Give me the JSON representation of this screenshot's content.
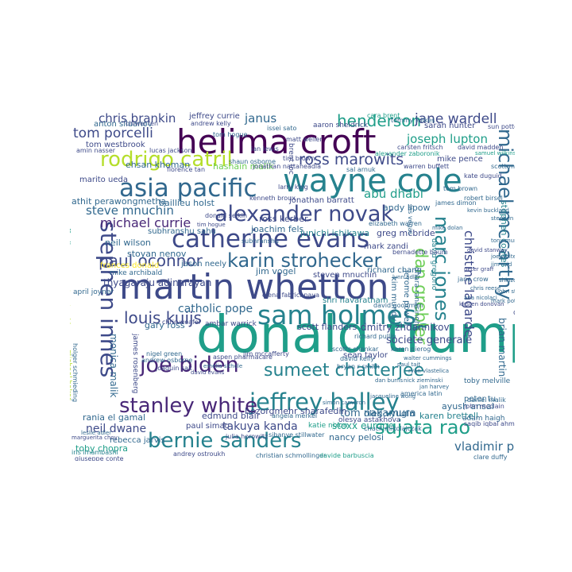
{
  "palette": {
    "c0": "#440154",
    "c1": "#482777",
    "c2": "#3e4a89",
    "c3": "#31688e",
    "c4": "#26828e",
    "c5": "#1f9e89",
    "c6": "#35b779",
    "c7": "#6ece58",
    "c8": "#b5de2b",
    "c9": "#fde725"
  },
  "words": {
    "donald_trump": "donald trump",
    "martin_whetton": "martin whetton",
    "helima_croft": "helima croft",
    "wayne_cole": "wayne cole",
    "sam_holmes": "sam holmes",
    "catherine_evans": "catherine evans",
    "asia_pacific": "asia pacific",
    "alexander_novak": "alexander novak",
    "jeffrey_halley": "jeffrey halley",
    "bernie_sanders": "bernie sanders",
    "stephen_innes": "stephen innes",
    "stanley_white": "stanley white",
    "joe_biden": "joe biden",
    "rodrigo_catril": "rodrigo catril",
    "karin_strohecker": "karin strohecker",
    "sujata_rao": "sujata rao",
    "sumeet_chatterjee": "sumeet chatterjee",
    "michael_mccarthy": "michael mccarthy",
    "marc_jones": "marc jones",
    "ross_marowits": "ross marowits",
    "paul_oconnor": "paul oconnor",
    "louis_kuijs": "louis kuijs",
    "henderson": "henderson",
    "dan_grebler": "dan grebler",
    "tom_porcelli": "tom porcelli",
    "jane_wardell": "jane wardell",
    "chris_brankin": "chris brankin",
    "joseph_lupton": "joseph lupton",
    "christine_lagarde": "christine lagarde",
    "steve_mnuchin": "steve mnuchin",
    "michael_currie": "michael currie",
    "abu_dhabi": "abu dhabi",
    "janus": "janus",
    "takuya_kanda": "takuya kanda",
    "neil_dwane": "neil dwane",
    "toby_chopra": "toby chopra",
    "vladimir_putin": "vladimir putin",
    "monica_malik": "monica malik",
    "brian_martin": "brian martin",
    "tom_nakamura": "tom nakamura",
    "stoxx_europe": "stoxx europe",
    "nancy_pelosi": "nancy pelosi",
    "karen_brettell": "karen brettell",
    "bozorgmehr_sharafedin": "bozorgmehr sharafedin",
    "societe_generale": "societe generale",
    "dmitry_zhdannikov": "dmitry zhdannikov",
    "scott_flanders": "scott flanders",
    "catholic_pope": "catholic pope",
    "thyagaraju_adinarayan": "thyagaraju adinarayan",
    "jim_vogel": "jim vogel",
    "richard_chang": "richard chang",
    "shri_navaratnam": "shri navaratnam",
    "edmund_blair": "edmund blair",
    "rebecca_jarvis": "rebecca jarvis",
    "paul_simao": "paul simao",
    "rania_el_gamal": "rania el gamal",
    "oleg_vyugin": "oleg vyugin",
    "katie_nixon": "katie nixon",
    "olesya_astakhova": "olesya astakhova",
    "ayush_ansal": "ayush ansal",
    "adam_haigh": "adam haigh",
    "peter_tu": "peter tu",
    "toby_melville": "toby melville",
    "stephen_coates": "stephen coates",
    "diego_parrilla": "diego parrilla",
    "kim_mundy": "kim mundy",
    "jerome_powell": "jerome powell",
    "dhara_ranasinghe": "dhara ranasinghe",
    "david_gregorio": "david gregorio",
    "steven_mnuchin": "steven mnuchin",
    "joachim_fels": "joachim fels",
    "junichi_ishikawa": "junichi ishikawa",
    "ross_kerber": "ross kerber",
    "greg_mcbride": "greg mcbride",
    "mark_zandi": "mark zandi",
    "andy_lipow": "andy lipow",
    "jonathan_barratt": "jonathan barratt",
    "athit_perawongmetha": "athit perawongmetha",
    "baillieu_holst": "baillieu holst",
    "ehsan_khoman": "ehsan khoman",
    "hasnain_malik": "hasnain malik",
    "marito_ueda": "marito ueda",
    "subhranshu_sahu": "subhranshu sahu",
    "stoyan_nenov": "stoyan nenov",
    "neil_wilson": "neil wilson",
    "frances_donald": "frances donald",
    "mike_archibald": "mike archibald",
    "jason_neely": "jason neely",
    "gary_ross": "gary ross",
    "chris_weafer": "chris weafer",
    "ambar_warrick": "ambar warrick",
    "sean_taylor": "sean taylor",
    "anton_siluanov": "anton siluanov",
    "tom_westbrook": "tom westbrook",
    "jeffrey_currie": "jeffrey currie",
    "aaron_sheldrick": "aaron sheldrick",
    "sarah_hunter": "sarah hunter",
    "mike_pence": "mike pence",
    "tom_hogue": "tom hogue",
    "amin_nasser": "amin nasser",
    "brent_loc": "brent loc",
    "david_madden": "david madden",
    "carsten_fritsch": "carsten fritsch",
    "warren_buffett": "warren buffett",
    "donald_selkin": "donald selkin",
    "jonathan_nattaheadia": "jonathan nattaheadia",
    "elena_fabrichnaya": "elena fabrichnaya",
    "james_rosenberg": "james rosenberg",
    "holger_schmieding": "holger schmieding",
    "michael_baker": "michael baker",
    "nigel_green": "nigel green",
    "andrew_osborne": "andrew osborne",
    "jim_mccafferty": "jim mccafferty",
    "aspen_pharmacare": "aspen pharmacare",
    "subhranshu": "subhranshu",
    "angela_merkel": "angela merkel",
    "chuck_mikolajczak": "chuck mikolajczak",
    "julia_horowitz": "julia horowitz",
    "sibanye_stillwater": "sibanye stillwater",
    "christian_schmollinger": "christian schmollinger",
    "davide_barbuscia": "davide barbuscia",
    "giuseppe_conte": "giuseppe conte",
    "andrey_ostroukh": "andrey ostroukh",
    "iris_imambashi": "iris imambashi",
    "clare_duffy": "clare duffy",
    "jane_crow": "jane crow",
    "stuart_oakley": "stuart oakley",
    "geoff_wilson": "geoff wilson",
    "april_joyner": "april joyner",
    "joaquin_sak": "joaquin sak",
    "kate_duguid": "kate duguid",
    "daniel_malik": "daniel malik",
    "saqib_iqbal_ahmed": "saqib iqbal ahmed",
    "john_mcclain": "john mcclain",
    "america_latin": "america latin",
    "walter_cummings": "walter cummings",
    "ryan_vlastelica": "ryan vlastelica",
    "karen_pierog": "karen pierog",
    "bryan_r_smith": "bryan r smith",
    "scotts_shankar": "scotts shankar",
    "david_kelly": "david kelly",
    "richard_pullin": "richard pullin",
    "david_goodman": "david goodman",
    "shaun_osborne": "shaun osborne",
    "alexander_zaboronik": "alexander zaboronik",
    "ian_lewis": "ian lewis",
    "matt_weller": "matt weller",
    "andrew_kelly": "andrew kelly",
    "lucas_jackson": "lucas jackson",
    "florence_tan": "florence tan",
    "tim_brown": "tim brown",
    "kenneth_broux": "kenneth broux",
    "larry_king": "larry king",
    "bernadette_baum": "bernadette baum",
    "tom_brown": "tom brown",
    "cara_brent": "cara brent",
    "tommy_wilkes": "tommy wilkes",
    "elizabeth_warren": "elizabeth warren",
    "sal_arnuk": "sal arnuk",
    "chiwei_ren": "chiwei ren",
    "sun_potter": "sun potter",
    "issei_sato": "issei sato",
    "robert_birsel": "robert birsel",
    "james_dimon": "james dimon",
    "scott_morrison": "scott morrison",
    "samuel_wilkinson": "samuel wilkinson",
    "tim_hogue": "tim hogue",
    "lynn_adler": "lynn adler",
    "las_vegas": "las vegas",
    "mike_dolan": "mike dolan",
    "kevin_buckland": "kevin buckland",
    "stephen_jen": "stephen jen",
    "tony_munroe": "tony munroe",
    "david_stanway": "david stanway",
    "joe_white": "joe white",
    "jim_reid": "jim reid",
    "peter_graff": "peter graff",
    "chris_reese": "chris reese",
    "ana_nicolaci": "ana nicolaci",
    "kirsten_donovan": "kirsten donovan",
    "shinzo_abe": "shinzo abe",
    "john_stonestreet": "john stonestreet",
    "mark_potter": "mark potter",
    "paul_tait": "paul tait",
    "nick_zieminski": "nick zieminski",
    "jan_harvey": "jan harvey",
    "dan_burns": "dan burns",
    "jacqueline_wong": "jacqueline wong",
    "simon_cameron": "simon cameron",
    "emelia_sithole": "emelia sithole",
    "david_evans": "david evans",
    "marguerita_choy": "marguerita choy",
    "leslie_adler": "leslie adler"
  }
}
